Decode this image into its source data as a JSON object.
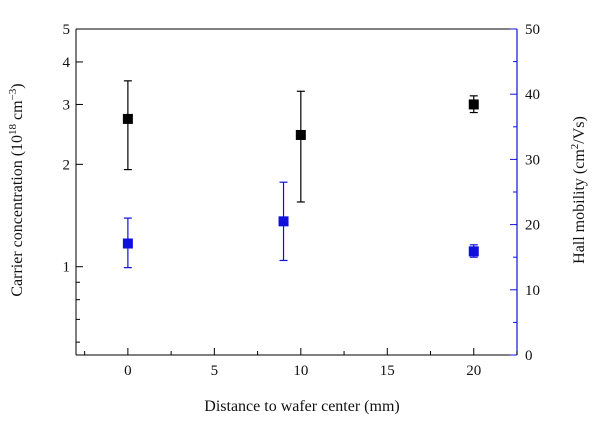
{
  "chart_data": {
    "type": "scatter",
    "xlabel": "Distance to wafer center (mm)",
    "ylabel_left": "Carrier concentration (10",
    "ylabel_left_exp": "18",
    "ylabel_left_unit": " cm",
    "ylabel_left_unit_exp": "−3",
    "ylabel_left_close": ")",
    "ylabel_right": "Hall mobility (cm",
    "ylabel_right_exp": "2",
    "ylabel_right_close": "/Vs)",
    "xlim": [
      -3,
      22.5
    ],
    "x_ticks": [
      0,
      5,
      10,
      15,
      20
    ],
    "x_tick_labels": [
      "0",
      "5",
      "10",
      "15",
      "20"
    ],
    "y_left_scale": "log",
    "y_left_lim": [
      0.55,
      5
    ],
    "y_left_major_ticks": [
      1,
      2,
      3,
      4,
      5
    ],
    "y_left_major_labels": [
      "1",
      "2",
      "3",
      "4",
      "5"
    ],
    "y_left_minor_ticks": [
      0.6,
      0.7,
      0.8,
      0.9
    ],
    "y_right_lim": [
      0,
      50
    ],
    "y_right_ticks": [
      0,
      10,
      20,
      30,
      40,
      50
    ],
    "y_right_tick_labels": [
      "0",
      "10",
      "20",
      "30",
      "40",
      "50"
    ],
    "right_axis_color": "#1010dd",
    "grid": false,
    "series": [
      {
        "axis": "left",
        "color": "#000000",
        "points": [
          {
            "x": 0,
            "y": 2.72,
            "y_low": 1.93,
            "y_high": 3.52
          },
          {
            "x": 10,
            "y": 2.44,
            "y_low": 1.55,
            "y_high": 3.28
          },
          {
            "x": 20,
            "y": 3.0,
            "y_low": 2.84,
            "y_high": 3.18
          }
        ]
      },
      {
        "axis": "right",
        "color": "#1010dd",
        "points": [
          {
            "x": 0,
            "y": 17.1,
            "y_low": 13.4,
            "y_high": 21.0
          },
          {
            "x": 9,
            "y": 20.5,
            "y_low": 14.5,
            "y_high": 26.5
          },
          {
            "x": 20,
            "y": 15.9,
            "y_low": 15.0,
            "y_high": 16.9
          }
        ]
      }
    ]
  }
}
